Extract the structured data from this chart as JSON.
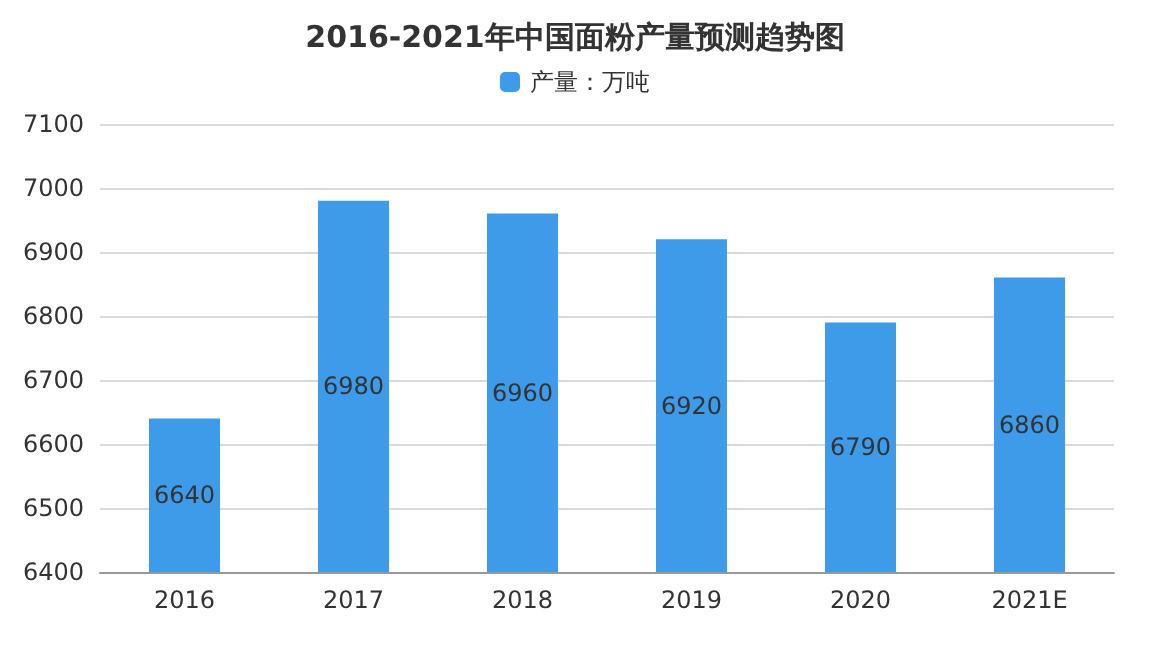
{
  "chart_data": {
    "type": "bar",
    "title": "2016-2021年中国面粉产量预测趋势图",
    "categories": [
      "2016",
      "2017",
      "2018",
      "2019",
      "2020",
      "2021E"
    ],
    "series": [
      {
        "name": "产量：万吨",
        "color": "#3d9be9",
        "values": [
          6640,
          6980,
          6960,
          6920,
          6790,
          6860
        ]
      }
    ],
    "ylim": [
      6400,
      7100
    ],
    "yticks": [
      6400,
      6500,
      6600,
      6700,
      6800,
      6900,
      7000,
      7100
    ],
    "grid": "y",
    "legend": "top",
    "data_labels": true
  }
}
